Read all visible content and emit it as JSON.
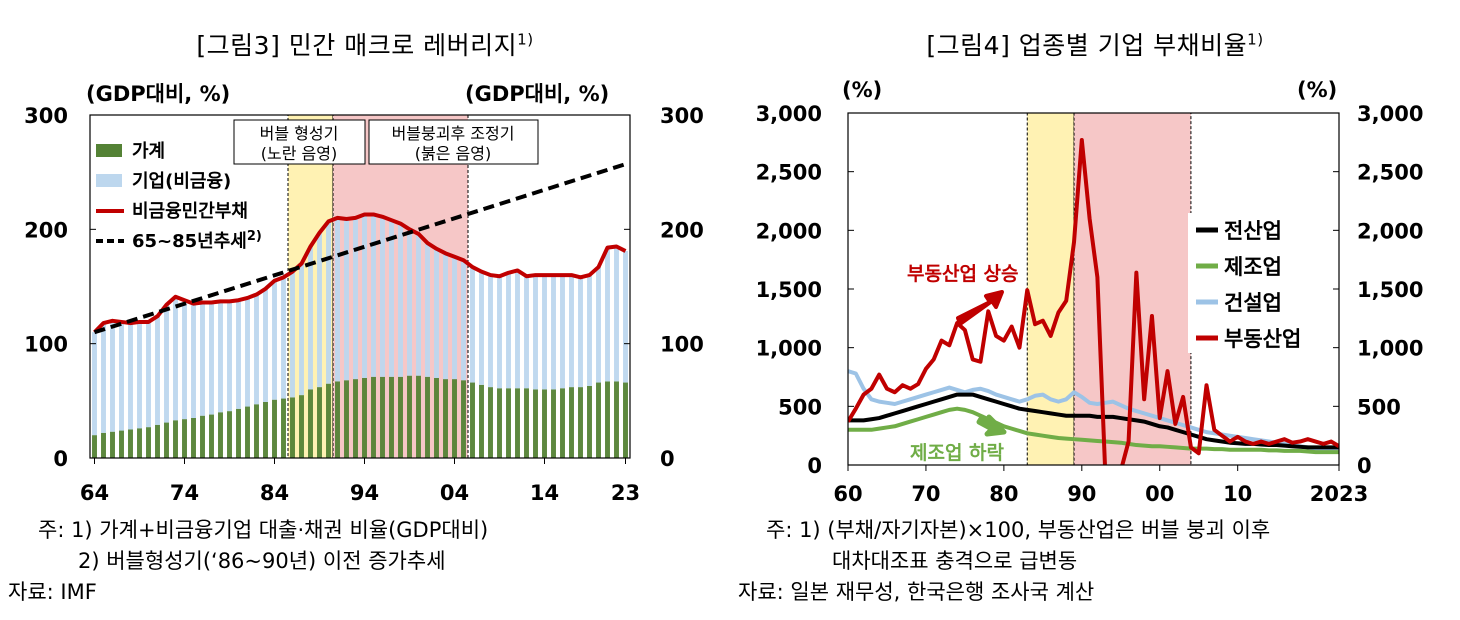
{
  "left": {
    "title": "[그림3] 민간 매크로 레버리지",
    "title_sup": "1)",
    "unit_left": "(GDP대비, %)",
    "unit_right": "(GDP대비, %)",
    "shade_labels": {
      "bubble_form_1": "버블 형성기",
      "bubble_form_2": "(노란 음영)",
      "bubble_adj_1": "버블붕괴후 조정기",
      "bubble_adj_2": "(붉은 음영)"
    },
    "legend": {
      "household": "가계",
      "corporate": "기업(비금융)",
      "nonfin_private": "비금융민간부채",
      "trend": "65~85년추세",
      "trend_sup": "2)"
    },
    "notes": {
      "note1": "주:  1) 가계+비금융기업 대출·채권 비율(GDP대비)",
      "note2": "2) 버블형성기(‘86~90년) 이전 증가추세",
      "source": "자료: IMF"
    }
  },
  "right": {
    "title": "[그림4] 업종별 기업 부채비율",
    "title_sup": "1)",
    "unit_left": "(%)",
    "unit_right": "(%)",
    "legend": {
      "all": "전산업",
      "manufacturing": "제조업",
      "construction": "건설업",
      "realestate": "부동산업"
    },
    "annotations": {
      "re_rise": "부동산업 상승",
      "mfg_fall": "제조업 하락"
    },
    "notes": {
      "note1": "주:  1) (부채/자기자본)×100, 부동산업은 버블 붕괴 이후",
      "note2": "대차대조표 충격으로 급변동",
      "source": "자료: 일본 재무성, 한국은행 조사국 계산"
    }
  },
  "colors": {
    "household": "#548235",
    "corporate": "#bdd7ee",
    "nonfin_private": "#c00000",
    "trend": "#000000",
    "yellow_shade": "#fff2b3",
    "red_shade": "#f6c7c7",
    "all": "#000000",
    "manufacturing": "#70ad47",
    "construction": "#9dc3e6",
    "realestate": "#c00000"
  },
  "chart_data": [
    {
      "type": "bar",
      "title": "[그림3] 민간 매크로 레버리지",
      "ylabel": "(GDP대비, %)",
      "ylim": [
        0,
        300
      ],
      "yticks": [
        "0",
        "100",
        "200",
        "300"
      ],
      "xticks": [
        "64",
        "74",
        "84",
        "94",
        "04",
        "14",
        "23"
      ],
      "x_start": 1964,
      "x_end": 2023,
      "shaded_periods": [
        [
          1986,
          1990
        ],
        [
          1991,
          2005
        ]
      ],
      "series": [
        {
          "name": "가계",
          "type": "stacked-bar",
          "values": [
            20,
            22,
            23,
            24,
            25,
            26,
            27,
            29,
            31,
            33,
            34,
            35,
            37,
            38,
            40,
            41,
            43,
            45,
            47,
            49,
            51,
            52,
            53,
            55,
            60,
            62,
            65,
            67,
            68,
            69,
            70,
            71,
            71,
            71,
            71,
            72,
            72,
            71,
            70,
            69,
            69,
            68,
            66,
            64,
            62,
            61,
            61,
            61,
            61,
            60,
            60,
            60,
            61,
            62,
            62,
            63,
            66,
            67,
            67,
            66
          ]
        },
        {
          "name": "기업(비금융)",
          "type": "stacked-bar",
          "values": [
            90,
            96,
            97,
            95,
            93,
            93,
            92,
            95,
            103,
            108,
            104,
            100,
            99,
            98,
            97,
            96,
            95,
            95,
            96,
            99,
            104,
            106,
            110,
            115,
            125,
            135,
            142,
            143,
            141,
            141,
            143,
            142,
            140,
            137,
            134,
            128,
            124,
            117,
            113,
            110,
            107,
            105,
            101,
            99,
            98,
            98,
            101,
            103,
            98,
            100,
            100,
            100,
            99,
            98,
            96,
            97,
            101,
            117,
            118,
            115
          ]
        },
        {
          "name": "비금융민간부채",
          "type": "line",
          "values": [
            110,
            118,
            120,
            119,
            118,
            119,
            119,
            124,
            134,
            141,
            138,
            135,
            136,
            136,
            137,
            137,
            138,
            140,
            143,
            148,
            155,
            158,
            163,
            170,
            185,
            197,
            207,
            210,
            209,
            210,
            213,
            213,
            211,
            208,
            205,
            200,
            196,
            188,
            183,
            179,
            176,
            173,
            167,
            163,
            160,
            159,
            162,
            164,
            159,
            160,
            160,
            160,
            160,
            160,
            158,
            160,
            167,
            184,
            185,
            181
          ]
        },
        {
          "name": "65~85년추세",
          "type": "line",
          "x": [
            1964,
            2023
          ],
          "values": [
            110,
            257
          ]
        }
      ]
    },
    {
      "type": "line",
      "title": "[그림4] 업종별 기업 부채비율",
      "ylabel": "(%)",
      "ylim": [
        0,
        3000
      ],
      "yticks": [
        "0",
        "500",
        "1,000",
        "1,500",
        "2,000",
        "2,500",
        "3,000"
      ],
      "xticks": [
        "60",
        "70",
        "80",
        "90",
        "00",
        "10",
        "2023"
      ],
      "x_start": 1960,
      "x_end": 2023,
      "shaded_periods": [
        [
          1983,
          1989
        ],
        [
          1989,
          2004
        ]
      ],
      "series": [
        {
          "name": "전산업",
          "values": [
            380,
            380,
            380,
            390,
            400,
            420,
            440,
            460,
            480,
            500,
            520,
            540,
            560,
            580,
            600,
            600,
            600,
            580,
            560,
            540,
            520,
            500,
            480,
            470,
            460,
            450,
            440,
            430,
            420,
            420,
            420,
            420,
            410,
            410,
            410,
            400,
            390,
            380,
            370,
            350,
            330,
            320,
            300,
            280,
            260,
            240,
            220,
            210,
            200,
            190,
            185,
            180,
            180,
            175,
            170,
            170,
            165,
            160,
            155,
            150,
            150,
            150,
            150,
            150
          ]
        },
        {
          "name": "제조업",
          "values": [
            300,
            300,
            300,
            300,
            310,
            320,
            330,
            350,
            370,
            390,
            410,
            430,
            450,
            470,
            480,
            470,
            450,
            420,
            390,
            360,
            330,
            310,
            290,
            270,
            260,
            250,
            240,
            230,
            225,
            220,
            215,
            210,
            205,
            200,
            195,
            190,
            180,
            170,
            165,
            160,
            160,
            155,
            150,
            145,
            140,
            140,
            140,
            135,
            135,
            130,
            130,
            130,
            130,
            130,
            125,
            125,
            120,
            120,
            120,
            115,
            110,
            110,
            110,
            110
          ]
        },
        {
          "name": "건설업",
          "values": [
            800,
            780,
            650,
            560,
            540,
            530,
            520,
            540,
            560,
            580,
            600,
            620,
            640,
            660,
            640,
            620,
            640,
            650,
            630,
            600,
            580,
            560,
            540,
            560,
            590,
            600,
            560,
            540,
            560,
            620,
            580,
            530,
            520,
            530,
            540,
            510,
            480,
            460,
            440,
            420,
            400,
            380,
            360,
            340,
            320,
            300,
            280,
            270,
            260,
            250,
            240,
            230,
            220,
            210,
            200,
            190,
            180,
            170,
            160,
            150,
            140,
            130,
            120,
            120
          ]
        },
        {
          "name": "부동산업",
          "values": [
            370,
            480,
            600,
            650,
            770,
            650,
            620,
            680,
            650,
            690,
            820,
            900,
            1060,
            1020,
            1210,
            1150,
            900,
            880,
            1310,
            1100,
            1060,
            1180,
            1000,
            1490,
            1200,
            1230,
            1100,
            1300,
            1400,
            1900,
            2770,
            2100,
            1600,
            -50,
            -50,
            -50,
            200,
            1640,
            560,
            1270,
            400,
            800,
            350,
            580,
            150,
            100,
            680,
            300,
            250,
            200,
            240,
            200,
            180,
            200,
            180,
            200,
            220,
            190,
            200,
            220,
            200,
            180,
            200,
            160
          ]
        }
      ]
    }
  ]
}
